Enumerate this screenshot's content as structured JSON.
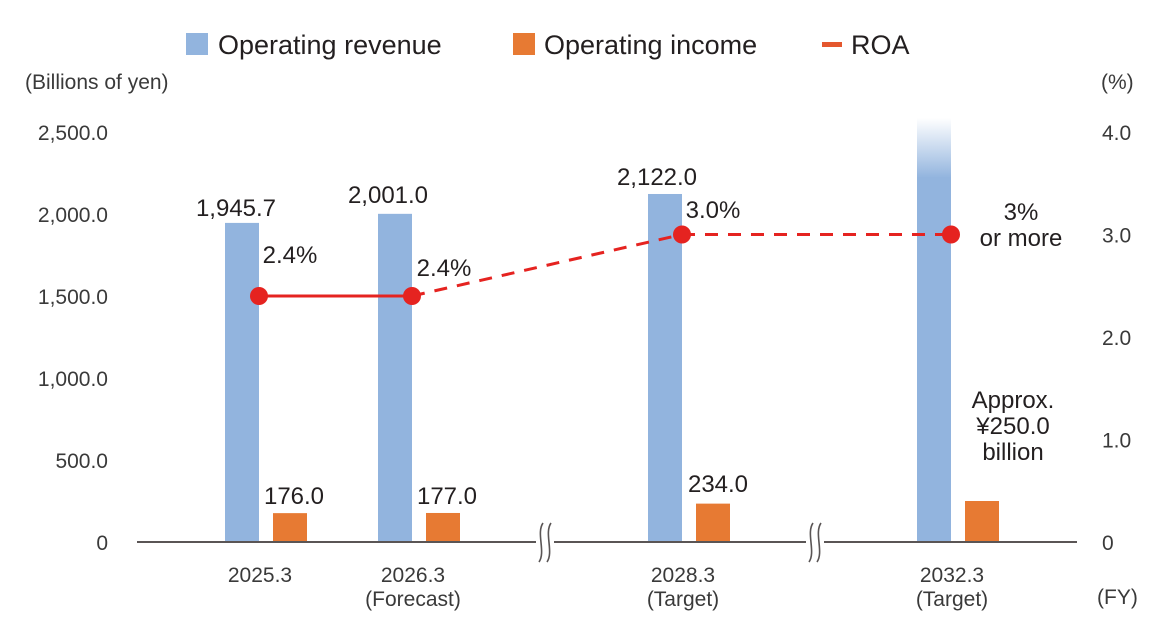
{
  "chart_data": {
    "type": "bar",
    "title": "",
    "legend": {
      "placement": "top-center",
      "items": [
        {
          "label": "Operating revenue",
          "marker": "square",
          "color": "#92b4de"
        },
        {
          "label": "Operating income",
          "marker": "square",
          "color": "#e77a33"
        },
        {
          "label": "ROA",
          "marker": "dash",
          "color": "#e4572e"
        }
      ]
    },
    "left_axis": {
      "label": "(Billions of yen)",
      "range": [
        0,
        2500
      ],
      "ticks": [
        "0",
        "500.0",
        "1,000.0",
        "1,500.0",
        "2,000.0",
        "2,500.0"
      ],
      "tick_values": [
        0,
        500,
        1000,
        1500,
        2000,
        2500
      ]
    },
    "right_axis": {
      "label": "(%)",
      "range": [
        0,
        4.0
      ],
      "ticks": [
        "0",
        "1.0",
        "2.0",
        "3.0",
        "4.0"
      ],
      "tick_values": [
        0,
        1,
        2,
        3,
        4
      ]
    },
    "x_axis": {
      "unit_label": "(FY)",
      "axis_breaks_after_category_index": [
        1,
        2
      ]
    },
    "categories": [
      {
        "label": "2025.3",
        "sublabel": ""
      },
      {
        "label": "2026.3",
        "sublabel": "(Forecast)"
      },
      {
        "label": "2028.3",
        "sublabel": "(Target)"
      },
      {
        "label": "2032.3",
        "sublabel": "(Target)"
      }
    ],
    "series": [
      {
        "name": "Operating revenue",
        "type": "bar",
        "axis": "left",
        "color": "#92b4de",
        "values": [
          1945.7,
          2001.0,
          2122.0,
          null
        ],
        "labels": [
          "1,945.7",
          "2,001.0",
          "2,122.0",
          ""
        ],
        "note": "2032.3 bar shown fading upward past axis top (value not stated)"
      },
      {
        "name": "Operating income",
        "type": "bar",
        "axis": "left",
        "color": "#e77a33",
        "values": [
          176.0,
          177.0,
          234.0,
          250.0
        ],
        "labels": [
          "176.0",
          "177.0",
          "234.0",
          "Approx.\n¥250.0\nbillion"
        ]
      },
      {
        "name": "ROA",
        "type": "line",
        "axis": "right",
        "color": "#e52320",
        "values": [
          2.4,
          2.4,
          3.0,
          3.0
        ],
        "labels": [
          "2.4%",
          "2.4%",
          "3.0%",
          "3%\nor more"
        ],
        "line_styles": [
          "solid",
          "dashed",
          "dashed"
        ]
      }
    ]
  }
}
